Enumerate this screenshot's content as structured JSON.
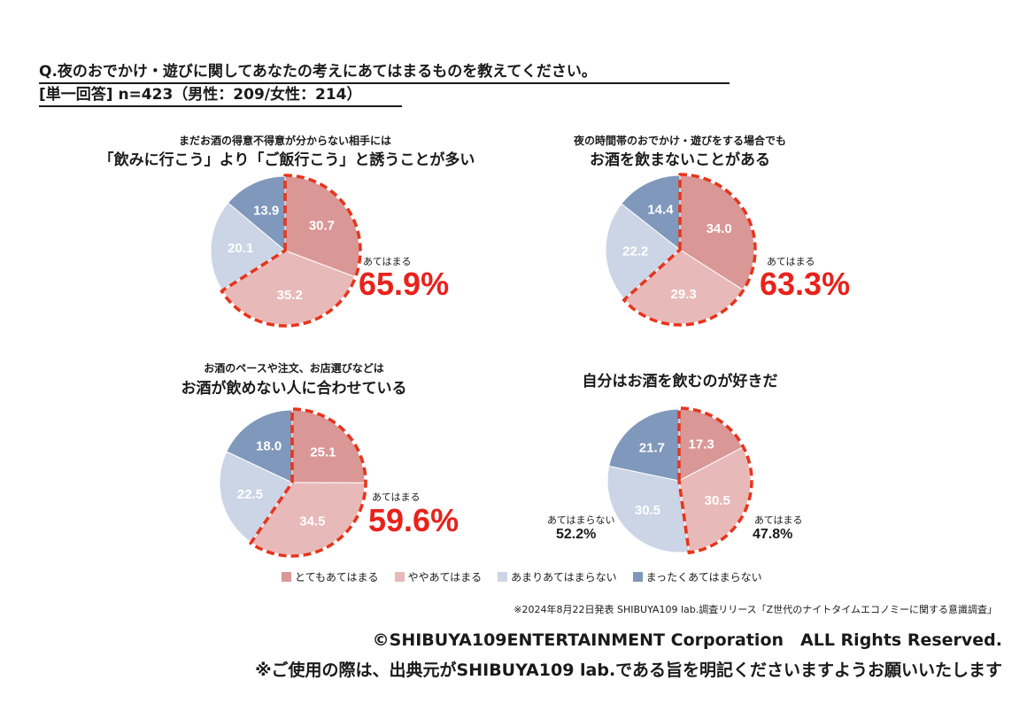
{
  "header": {
    "question": "Q.夜のおでかけ・遊びに関してあなたの考えにあてはまるものを教えてください。",
    "sample": "[単一回答] n=423（男性：209/女性：214）"
  },
  "colors": {
    "c1": "#d99796",
    "c2": "#e8b9b9",
    "c3": "#cbd5e5",
    "c4": "#7f98bb",
    "highlight": "#e8341b",
    "accent_text": "#e8221b"
  },
  "legend": [
    "とてもあてはまる",
    "ややあてはまる",
    "あまりあてはまらない",
    "まったくあてはまらない"
  ],
  "chart_data": [
    {
      "type": "pie",
      "subtitle": "まだお酒の得意不得意が分からない相手には",
      "title": "「飲みに行こう」より「ご飯行こう」と誘うことが多い",
      "categories": [
        "とてもあてはまる",
        "ややあてはまる",
        "あまりあてはまらない",
        "まったくあてはまらない"
      ],
      "values": [
        30.7,
        35.2,
        20.1,
        13.9
      ],
      "value_labels": [
        "30.7",
        "35.2",
        "20.1",
        "13.9"
      ],
      "callout_label": "あてはまる",
      "callout_value": "65.9%"
    },
    {
      "type": "pie",
      "subtitle": "夜の時間帯のおでかけ・遊びをする場合でも",
      "title": "お酒を飲まないことがある",
      "categories": [
        "とてもあてはまる",
        "ややあてはまる",
        "あまりあてはまらない",
        "まったくあてはまらない"
      ],
      "values": [
        34.0,
        29.3,
        22.2,
        14.4
      ],
      "value_labels": [
        "34.0",
        "29.3",
        "22.2",
        "14.4"
      ],
      "callout_label": "あてはまる",
      "callout_value": "63.3%"
    },
    {
      "type": "pie",
      "subtitle": "お酒のペースや注文、お店選びなどは",
      "title": "お酒が飲めない人に合わせている",
      "categories": [
        "とてもあてはまる",
        "ややあてはまる",
        "あまりあてはまらない",
        "まったくあてはまらない"
      ],
      "values": [
        25.1,
        34.5,
        22.5,
        18.0
      ],
      "value_labels": [
        "25.1",
        "34.5",
        "22.5",
        "18.0"
      ],
      "callout_label": "あてはまる",
      "callout_value": "59.6%"
    },
    {
      "type": "pie",
      "subtitle": "",
      "title": "自分はお酒を飲むのが好きだ",
      "categories": [
        "とてもあてはまる",
        "ややあてはまる",
        "あまりあてはまらない",
        "まったくあてはまらない"
      ],
      "values": [
        17.3,
        30.5,
        30.5,
        21.7
      ],
      "value_labels": [
        "17.3",
        "30.5",
        "30.5",
        "21.7"
      ],
      "callout_label": "あてはまる",
      "callout_value": "47.8%",
      "callout2_label": "あてはまらない",
      "callout2_value": "52.2%"
    }
  ],
  "footer": {
    "source": "※2024年8月22日発表 SHIBUYA109 lab.調査リリース「Z世代のナイトタイムエコノミーに関する意識調査」",
    "copyright": "©SHIBUYA109ENTERTAINMENT Corporation　ALL Rights Reserved.",
    "notice": "※ご使用の際は、出典元がSHIBUYA109 lab.である旨を明記くださいますようお願いいたします"
  }
}
